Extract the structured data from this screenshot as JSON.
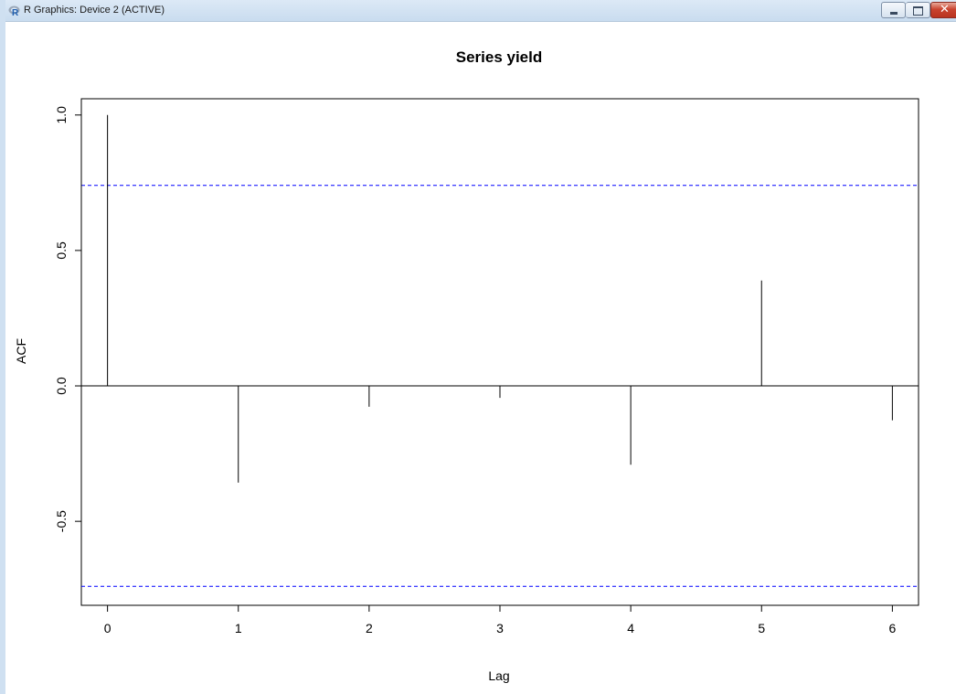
{
  "window": {
    "title": "R Graphics: Device 2 (ACTIVE)",
    "icon": "r-logo-icon",
    "controls": [
      "minimize-icon",
      "maximize-icon",
      "close-icon"
    ]
  },
  "chart_data": {
    "type": "bar",
    "title": "Series  yield",
    "xlabel": "Lag",
    "ylabel": "ACF",
    "x": [
      0,
      1,
      2,
      3,
      4,
      5,
      6
    ],
    "values": [
      1.0,
      -0.357,
      -0.077,
      -0.044,
      -0.291,
      0.389,
      -0.127
    ],
    "confidence_bounds": [
      0.74,
      -0.74
    ],
    "xlim": [
      -0.2,
      6.2
    ],
    "ylim": [
      -0.81,
      1.06
    ],
    "xticks": [
      0,
      1,
      2,
      3,
      4,
      5,
      6
    ],
    "yticks": [
      -0.5,
      0.0,
      0.5,
      1.0
    ],
    "ytick_labels": [
      "-0.5",
      "0.0",
      "0.5",
      "1.0"
    ],
    "zero_line": true,
    "grid": false,
    "colors": {
      "bars": "#000000",
      "bounds": "#0000ff"
    }
  }
}
